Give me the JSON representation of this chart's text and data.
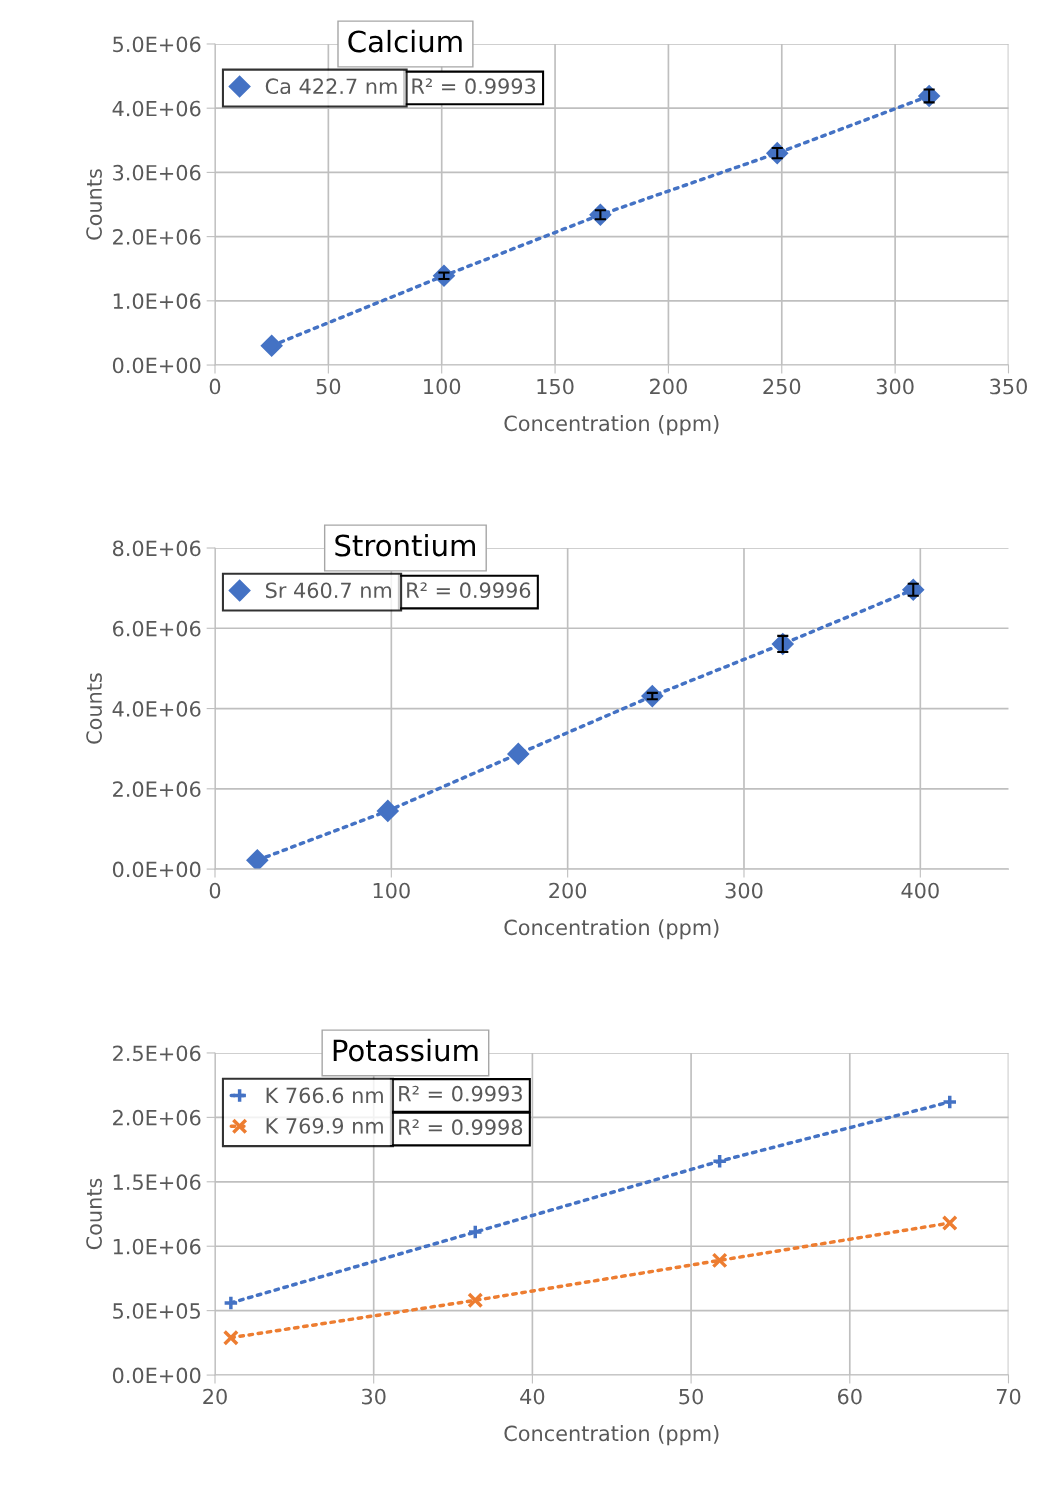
{
  "chart_data": [
    {
      "type": "line",
      "title": "Calcium",
      "xlabel": "Concentration (ppm)",
      "ylabel": "Counts",
      "x": [
        25,
        101,
        170,
        248,
        315
      ],
      "series": [
        {
          "name": "Ca 422.7 nm",
          "color": "#4472c4",
          "marker": "diamond",
          "line_style": "dotted",
          "values": [
            300000,
            1390000,
            2340000,
            3300000,
            4190000
          ],
          "errors": [
            null,
            50000,
            70000,
            80000,
            100000
          ]
        }
      ],
      "annotations": [
        "R² = 0.9993"
      ],
      "xlim": [
        0,
        350
      ],
      "xticks": [
        0,
        50,
        100,
        150,
        200,
        250,
        300,
        350
      ],
      "ylim": [
        0,
        5000000
      ],
      "yticks": [
        {
          "value": 0,
          "label": "0.0E+00"
        },
        {
          "value": 1000000,
          "label": "1.0E+06"
        },
        {
          "value": 2000000,
          "label": "2.0E+06"
        },
        {
          "value": 3000000,
          "label": "3.0E+06"
        },
        {
          "value": 4000000,
          "label": "4.0E+06"
        },
        {
          "value": 5000000,
          "label": "5.0E+06"
        }
      ],
      "grid": true,
      "legend": "top left"
    },
    {
      "type": "line",
      "title": "Strontium",
      "xlabel": "Concentration (ppm)",
      "ylabel": "Counts",
      "x": [
        24,
        98,
        172,
        248,
        322,
        396
      ],
      "series": [
        {
          "name": "Sr 460.7 nm",
          "color": "#4472c4",
          "marker": "diamond",
          "line_style": "dotted",
          "values": [
            220000,
            1450000,
            2870000,
            4310000,
            5610000,
            6960000
          ],
          "errors": [
            null,
            null,
            null,
            80000,
            200000,
            150000
          ]
        }
      ],
      "annotations": [
        "R² = 0.9996"
      ],
      "xlim": [
        0,
        450
      ],
      "xticks": [
        0,
        100,
        200,
        300,
        400
      ],
      "ylim": [
        0,
        8000000
      ],
      "yticks": [
        {
          "value": 0,
          "label": "0.0E+00"
        },
        {
          "value": 2000000,
          "label": "2.0E+06"
        },
        {
          "value": 4000000,
          "label": "4.0E+06"
        },
        {
          "value": 6000000,
          "label": "6.0E+06"
        },
        {
          "value": 8000000,
          "label": "8.0E+06"
        }
      ],
      "grid": true,
      "legend": "top left"
    },
    {
      "type": "line",
      "title": "Potassium",
      "xlabel": "Concentration (ppm)",
      "ylabel": "Counts",
      "x": [
        21.0,
        36.4,
        51.8,
        66.3
      ],
      "series": [
        {
          "name": "K 766.6 nm",
          "color": "#4472c4",
          "marker": "plus",
          "line_style": "dotted",
          "values": [
            560000,
            1110000,
            1660000,
            2120000
          ]
        },
        {
          "name": "K 769.9 nm",
          "color": "#ed7d31",
          "marker": "cross",
          "line_style": "dotted",
          "values": [
            290000,
            580000,
            890000,
            1180000
          ]
        }
      ],
      "annotations": [
        "R² = 0.9993",
        "R² = 0.9998"
      ],
      "xlim": [
        20,
        70
      ],
      "xticks": [
        20,
        30,
        40,
        50,
        60,
        70
      ],
      "ylim": [
        0,
        2500000
      ],
      "yticks": [
        {
          "value": 0,
          "label": "0.0E+00"
        },
        {
          "value": 500000,
          "label": "5.0E+05"
        },
        {
          "value": 1000000,
          "label": "1.0E+06"
        },
        {
          "value": 1500000,
          "label": "1.5E+06"
        },
        {
          "value": 2000000,
          "label": "2.0E+06"
        },
        {
          "value": 2500000,
          "label": "2.5E+06"
        }
      ],
      "grid": true,
      "legend": "top left"
    }
  ]
}
